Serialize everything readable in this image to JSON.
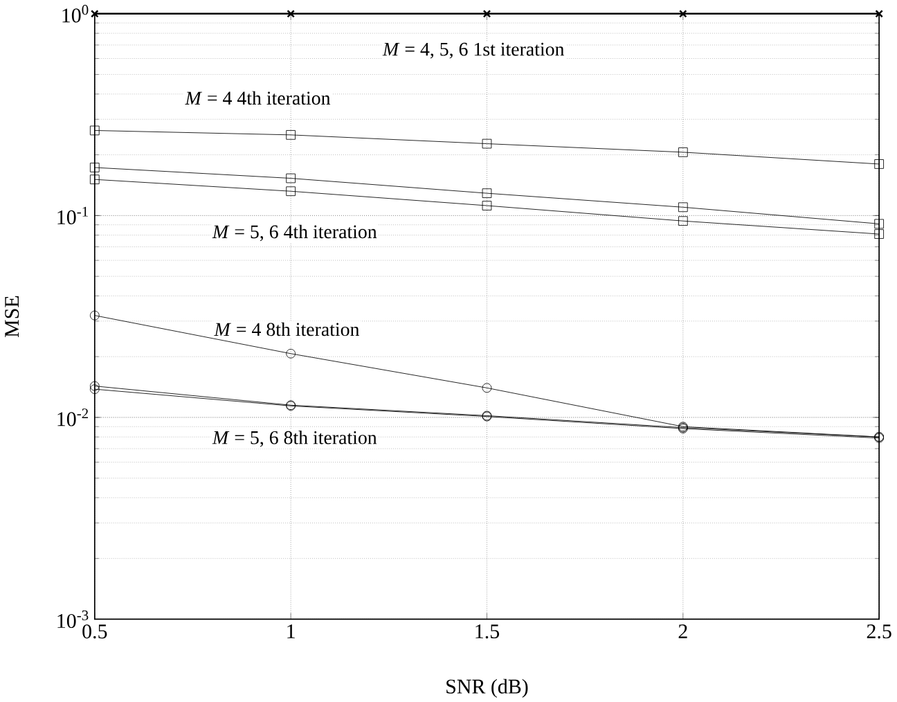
{
  "chart_data": {
    "type": "line",
    "xlabel": "SNR (dB)",
    "ylabel": "MSE",
    "log": "y",
    "grid": true,
    "x": [
      0.5,
      1,
      1.5,
      2,
      2.5
    ],
    "series": [
      {
        "color": "#000000",
        "marker": "cross",
        "values": [
          1,
          1,
          1,
          1,
          1
        ]
      },
      {
        "color": "#000000",
        "marker": "square",
        "values": [
          0.264,
          0.251,
          0.227,
          0.206,
          0.18
        ]
      },
      {
        "color": "#000000",
        "marker": "square",
        "values": [
          0.173,
          0.153,
          0.129,
          0.11,
          0.091
        ]
      },
      {
        "color": "#000000",
        "marker": "square",
        "values": [
          0.151,
          0.132,
          0.112,
          0.094,
          0.081
        ]
      },
      {
        "color": "#000000",
        "marker": "circle",
        "values": [
          0.032,
          0.0207,
          0.014,
          0.009,
          0.008
        ]
      },
      {
        "color": "#000000",
        "marker": "circle",
        "values": [
          0.0143,
          0.0115,
          0.0102,
          0.0089,
          0.008
        ]
      },
      {
        "color": "#000000",
        "marker": "circle",
        "values": [
          0.0138,
          0.0114,
          0.0101,
          0.0088,
          0.0079
        ]
      }
    ],
    "xlim": [
      0.5,
      2.5
    ],
    "xticks": [
      0.5,
      1,
      1.5,
      2,
      2.5
    ],
    "ylim": [
      0.001,
      1
    ],
    "yticks": [
      {
        "value": 0.001,
        "label": "10$^{-3}$"
      },
      {
        "value": 0.01,
        "label": "10$^{-2}$"
      },
      {
        "value": 0.1,
        "label": "10$^{-1}$"
      },
      {
        "value": 1,
        "label": "10$^{0}$"
      }
    ],
    "annotations": [
      "*M* = 4, 5, 6 1st iteration",
      "*M* = 4 4th iteration",
      "*M* = 5, 6 4th iteration",
      "*M* = 4 8th iteration",
      "*M* = 5, 6 8th iteration"
    ]
  }
}
